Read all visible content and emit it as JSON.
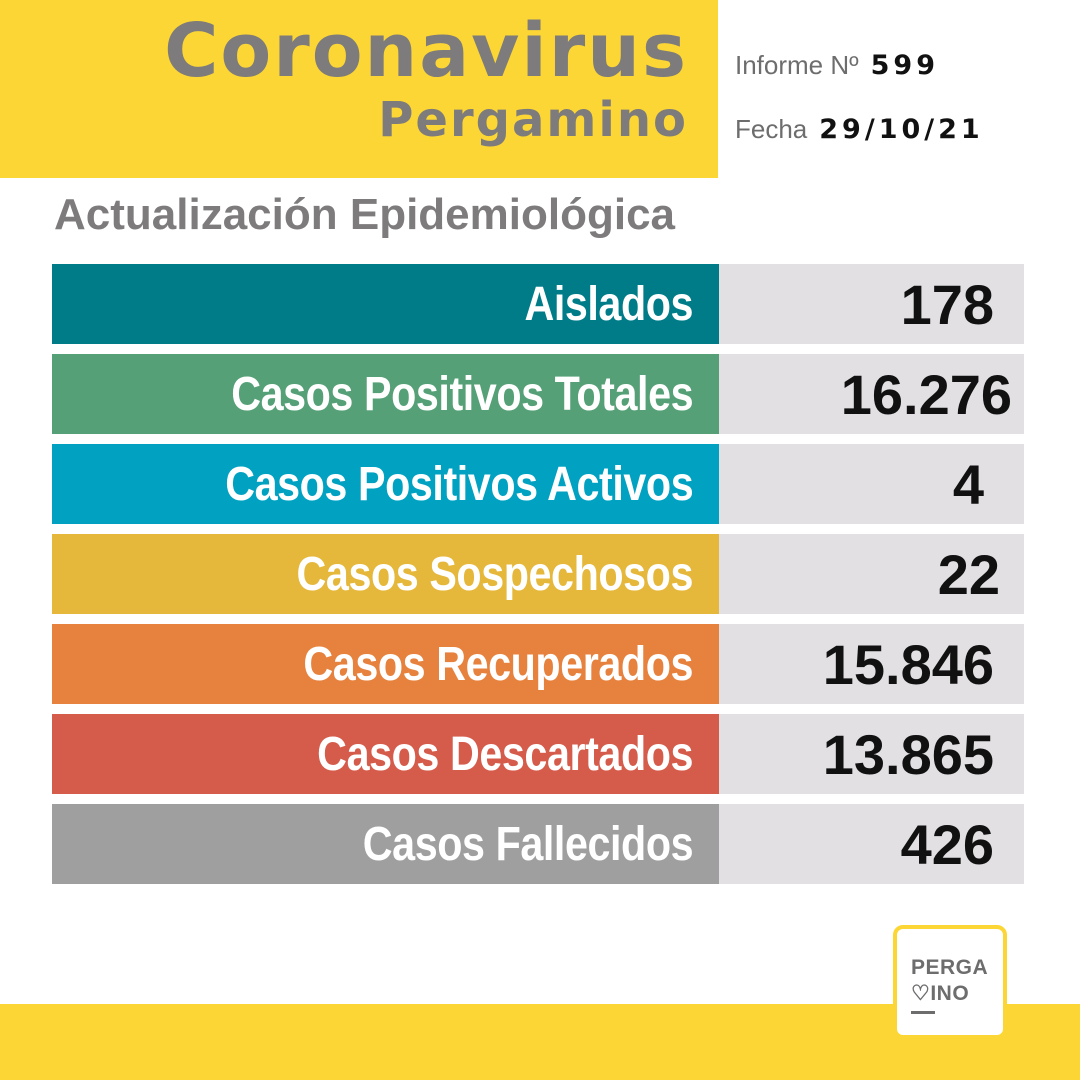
{
  "header": {
    "title": "Coronavirus",
    "subtitle": "Pergamino",
    "report_label": "Informe Nº",
    "report_number": "599",
    "date_label": "Fecha",
    "date_value": "29/10/21"
  },
  "section_title": "Actualización Epidemiológica",
  "stats": [
    {
      "label": "Aislados",
      "value": "178",
      "color": "#007c89"
    },
    {
      "label": "Casos Positivos Totales",
      "value": "16.276",
      "color": "#55a076"
    },
    {
      "label": "Casos Positivos Activos",
      "value": "4",
      "color": "#01a1c2"
    },
    {
      "label": "Casos Sospechosos",
      "value": "22",
      "color": "#e5b73b"
    },
    {
      "label": "Casos Recuperados",
      "value": "15.846",
      "color": "#e6823d"
    },
    {
      "label": "Casos Descartados",
      "value": "13.865",
      "color": "#d55b4b"
    },
    {
      "label": "Casos Fallecidos",
      "value": "426",
      "color": "#9f9f9f"
    }
  ],
  "logo": {
    "line1": "PERGA",
    "line2": "♡INO"
  },
  "colors": {
    "brand_yellow": "#fcd634",
    "title_gray": "#7d7b7b",
    "value_box": "#e2e0e3"
  }
}
